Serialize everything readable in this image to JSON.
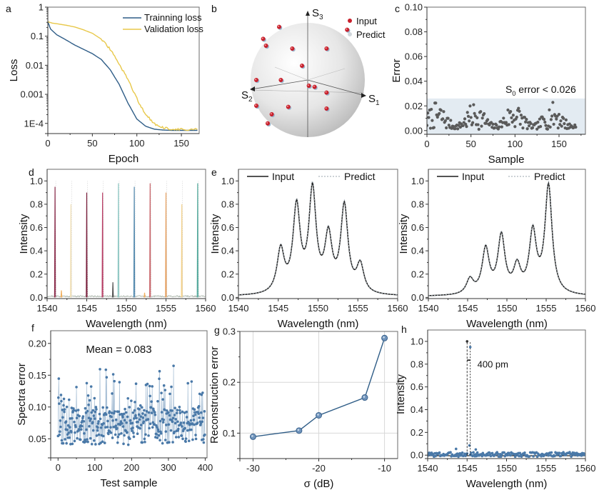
{
  "figure": {
    "panel_labels": [
      "a",
      "b",
      "c",
      "d",
      "e",
      "",
      "f",
      "g",
      "h"
    ]
  },
  "colors": {
    "training": "#2f5d87",
    "validation": "#e8c84a",
    "scatter_gray": "#5a5a5a",
    "shade": "#e3ebf2",
    "input_red": "#c8202c",
    "predict_blue": "#9ab8cf",
    "marker_blue": "#4a79a8",
    "line_blue": "#2f5d87",
    "spectrum_black": "#1a1a1a",
    "predict_gray": "#9aa5ad"
  },
  "chart_data": [
    {
      "id": "a",
      "type": "line",
      "title": "",
      "xlabel": "Epoch",
      "ylabel": "Loss",
      "xlim": [
        0,
        170
      ],
      "ylim_log10": [
        -4.35,
        0
      ],
      "yscale": "log",
      "xticks": [
        "0",
        "50",
        "100",
        "150"
      ],
      "xtick_values": [
        0,
        50,
        100,
        150
      ],
      "yticks": [
        "1",
        "0.1",
        "0.01",
        "0.001",
        "1E-4"
      ],
      "ytick_values": [
        0,
        -1,
        -2,
        -3,
        -4
      ],
      "legend": [
        "Trainning loss",
        "Validation loss"
      ],
      "legend_position": "top-right",
      "series": [
        {
          "name": "Trainning loss",
          "x": [
            0,
            3,
            10,
            20,
            30,
            40,
            50,
            60,
            70,
            80,
            90,
            100,
            110,
            120,
            130,
            140,
            150,
            168
          ],
          "log10_y": [
            -0.5,
            -0.75,
            -0.95,
            -1.12,
            -1.3,
            -1.45,
            -1.6,
            -1.8,
            -2.15,
            -2.65,
            -3.3,
            -3.85,
            -4.1,
            -4.2,
            -4.23,
            -4.24,
            -4.24,
            -4.24
          ]
        },
        {
          "name": "Validation loss",
          "x": [
            0,
            5,
            10,
            20,
            30,
            40,
            50,
            60,
            70,
            80,
            90,
            100,
            110,
            120,
            130,
            140,
            150,
            168
          ],
          "log10_y": [
            -0.5,
            -0.55,
            -0.57,
            -0.62,
            -0.68,
            -0.78,
            -0.9,
            -1.1,
            -1.45,
            -1.95,
            -2.5,
            -3.15,
            -3.7,
            -4.02,
            -4.15,
            -4.2,
            -4.21,
            -4.21
          ]
        }
      ]
    },
    {
      "id": "b",
      "type": "scatter",
      "title": "",
      "axes": [
        "S1",
        "S2",
        "S3"
      ],
      "legend": [
        "Input",
        "Predict"
      ],
      "legend_position": "top-right",
      "points_projected": [
        [
          -0.5,
          -0.93
        ],
        [
          -0.78,
          -0.72
        ],
        [
          -0.73,
          -0.6
        ],
        [
          -0.27,
          -0.55
        ],
        [
          0.33,
          -0.55
        ],
        [
          0.69,
          -0.88
        ],
        [
          -0.1,
          -0.25
        ],
        [
          -0.9,
          0.0
        ],
        [
          -0.47,
          0.0
        ],
        [
          0.02,
          0.1
        ],
        [
          0.33,
          0.22
        ],
        [
          -0.34,
          0.47
        ],
        [
          -0.9,
          0.45
        ],
        [
          -0.63,
          0.6
        ],
        [
          -0.7,
          0.76
        ],
        [
          0.33,
          0.5
        ],
        [
          0.12,
          0.12
        ]
      ]
    },
    {
      "id": "c",
      "type": "scatter",
      "title": "",
      "xlabel": "Sample",
      "ylabel": "Error",
      "xlim": [
        0,
        180
      ],
      "ylim": [
        -0.003,
        0.1
      ],
      "xticks": [
        "0",
        "50",
        "100",
        "150"
      ],
      "xtick_values": [
        0,
        50,
        100,
        150
      ],
      "yticks": [
        "0.00",
        "0.02",
        "0.04",
        "0.06",
        "0.08",
        "0.10"
      ],
      "ytick_values": [
        0,
        0.02,
        0.04,
        0.06,
        0.08,
        0.1
      ],
      "annotation_prefix": "S",
      "annotation_sub": "0",
      "annotation_suffix": " error < 0.026",
      "threshold": 0.026,
      "n_points": 170,
      "seed": 7
    },
    {
      "id": "d",
      "type": "line",
      "title": "",
      "xlabel": "Wavelength (nm)",
      "ylabel": "Intensity",
      "xlim": [
        1540,
        1560
      ],
      "ylim": [
        -0.01,
        1.1
      ],
      "xticks": [
        "1540",
        "1545",
        "1550",
        "1555",
        "1560"
      ],
      "xtick_values": [
        1540,
        1545,
        1550,
        1555,
        1560
      ],
      "yticks": [
        "0.0",
        "0.2",
        "0.4",
        "0.6",
        "0.8",
        "1.0"
      ],
      "ytick_values": [
        0,
        0.2,
        0.4,
        0.6,
        0.8,
        1.0
      ],
      "peaks": [
        {
          "x": 1541.0,
          "y": 0.95,
          "color": "#8a2a4a"
        },
        {
          "x": 1543.0,
          "y": 0.8,
          "color": "#f0e0b8"
        },
        {
          "x": 1545.0,
          "y": 0.9,
          "color": "#7a1f3c"
        },
        {
          "x": 1547.0,
          "y": 0.9,
          "color": "#b83c64"
        },
        {
          "x": 1548.3,
          "y": 0.13,
          "color": "#555555"
        },
        {
          "x": 1549.0,
          "y": 0.98,
          "color": "#8cc8c4"
        },
        {
          "x": 1551.0,
          "y": 0.95,
          "color": "#4f87ad"
        },
        {
          "x": 1553.0,
          "y": 0.98,
          "color": "#c9656a"
        },
        {
          "x": 1555.0,
          "y": 0.9,
          "color": "#e6a060"
        },
        {
          "x": 1557.0,
          "y": 0.8,
          "color": "#f3d18a"
        },
        {
          "x": 1559.0,
          "y": 0.98,
          "color": "#4fa89a"
        },
        {
          "x": 1541.8,
          "y": 0.06,
          "color": "#f0b060"
        },
        {
          "x": 1552.3,
          "y": 0.04,
          "color": "#f0b060"
        }
      ]
    },
    {
      "id": "e",
      "type": "line",
      "title": "",
      "xlabel": "Wavelength (nm)",
      "ylabel": "Intensity",
      "xlim": [
        1540,
        1560
      ],
      "ylim": [
        -0.01,
        1.1
      ],
      "xticks": [
        "1540",
        "1545",
        "1550",
        "1555",
        "1560"
      ],
      "xtick_values": [
        1540,
        1545,
        1550,
        1555,
        1560
      ],
      "yticks": [
        "0.0",
        "0.2",
        "0.4",
        "0.6",
        "0.8",
        "1.0"
      ],
      "ytick_values": [
        0,
        0.2,
        0.4,
        0.6,
        0.8,
        1.0
      ],
      "legend": [
        "Input",
        "Predict"
      ],
      "legend_position": "top",
      "peak_centers": [
        1545.3,
        1547.3,
        1549.3,
        1551.3,
        1553.3,
        1555.3
      ],
      "peak_heights": [
        0.45,
        0.85,
        1.0,
        0.6,
        0.84,
        0.31
      ],
      "valleys": [
        0.21,
        0.3,
        0.27,
        0.24,
        0.18
      ]
    },
    {
      "id": "e2",
      "type": "line",
      "title": "",
      "xlabel": "Wavelength (nm)",
      "ylabel": "Intensity",
      "xlim": [
        1540,
        1560
      ],
      "ylim": [
        -0.01,
        1.1
      ],
      "xticks": [
        "1540",
        "1545",
        "1550",
        "1555",
        "1560"
      ],
      "xtick_values": [
        1540,
        1545,
        1550,
        1555,
        1560
      ],
      "yticks": [
        "0.0",
        "0.2",
        "0.4",
        "0.6",
        "0.8",
        "1.0"
      ],
      "ytick_values": [
        0,
        0.2,
        0.4,
        0.6,
        0.8,
        1.0
      ],
      "legend": [
        "Input",
        "Predict"
      ],
      "legend_position": "top",
      "peak_centers": [
        1545.3,
        1547.3,
        1549.3,
        1551.3,
        1553.3,
        1555.3
      ],
      "peak_heights": [
        0.17,
        0.45,
        0.57,
        0.31,
        0.62,
        1.0
      ],
      "valleys": [
        0.1,
        0.17,
        0.15,
        0.15,
        0.26
      ]
    },
    {
      "id": "f",
      "type": "scatter",
      "title": "",
      "xlabel": "Test sample",
      "ylabel": "Spectra error",
      "xlim": [
        -20,
        405
      ],
      "ylim": [
        0.02,
        0.22
      ],
      "xticks": [
        "0",
        "100",
        "200",
        "300",
        "400"
      ],
      "xtick_values": [
        0,
        100,
        200,
        300,
        400
      ],
      "yticks": [
        "0.05",
        "0.10",
        "0.15",
        "0.20"
      ],
      "ytick_values": [
        0.05,
        0.1,
        0.15,
        0.2
      ],
      "annotation": "Mean = 0.083",
      "mean": 0.083,
      "n_points": 400,
      "seed": 11
    },
    {
      "id": "g",
      "type": "line",
      "title": "",
      "xlabel": "σ (dB)",
      "ylabel": "Reconstruction error",
      "xlim": [
        -32,
        -8
      ],
      "ylim": [
        0.05,
        0.3
      ],
      "xticks": [
        "-30",
        "-20",
        "-10"
      ],
      "xtick_values": [
        -30,
        -20,
        -10
      ],
      "yticks": [
        "0.1",
        "0.2",
        "0.3"
      ],
      "ytick_values": [
        0.1,
        0.2,
        0.3
      ],
      "grid": true,
      "x": [
        -30,
        -23,
        -20,
        -13,
        -10
      ],
      "y": [
        0.093,
        0.105,
        0.135,
        0.17,
        0.287
      ]
    },
    {
      "id": "h",
      "type": "scatter",
      "title": "",
      "xlabel": "Wavelength (nm)",
      "ylabel": "Intensity",
      "xlim": [
        1540,
        1560
      ],
      "ylim": [
        -0.03,
        1.1
      ],
      "xticks": [
        "1540",
        "1545",
        "1550",
        "1555",
        "1560"
      ],
      "xtick_values": [
        1540,
        1545,
        1550,
        1555,
        1560
      ],
      "yticks": [
        "0.0",
        "0.2",
        "0.4",
        "0.6",
        "0.8",
        "1.0"
      ],
      "ytick_values": [
        0,
        0.2,
        0.4,
        0.6,
        0.8,
        1.0
      ],
      "annotation": "400 pm",
      "peak1": {
        "x": 1545.0,
        "y": 1.0
      },
      "peak2": {
        "x": 1545.4,
        "y": 0.95
      },
      "n_points": 200,
      "seed": 3
    }
  ]
}
